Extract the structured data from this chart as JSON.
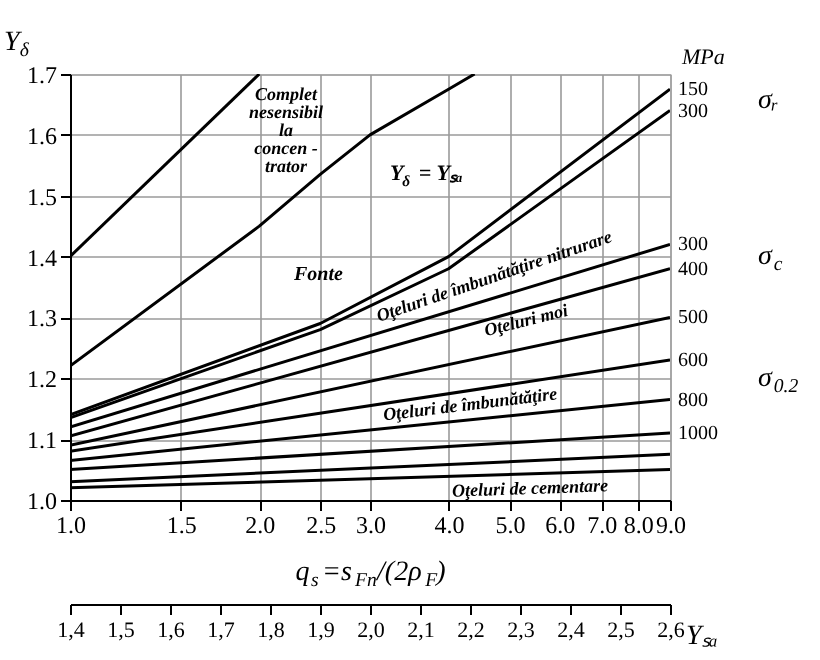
{
  "chart_data": {
    "type": "line",
    "xlabel": "q$_{s}$=s$_{Fn}$/(2ρ$_{F}$)",
    "ylabel": "Y$_{δ}$",
    "xlim": [
      1.0,
      9.0
    ],
    "xticks": [
      {
        "value": 1,
        "label": "1.0"
      },
      1.5,
      {
        "value": 2,
        "label": "2.0"
      },
      2.5,
      {
        "value": 3,
        "label": "3.0"
      },
      {
        "value": 4,
        "label": "4.0"
      },
      {
        "value": 5,
        "label": "5.0"
      },
      {
        "value": 6,
        "label": "6.0"
      },
      {
        "value": 7,
        "label": "7.0"
      },
      {
        "value": 8,
        "label": "8.0"
      },
      {
        "value": 9,
        "label": "9.0"
      }
    ],
    "ylim": [
      1.0,
      1.7
    ],
    "yticks": [
      {
        "value": 1,
        "label": "1.0"
      },
      1.1,
      1.2,
      1.3,
      1.4,
      1.5,
      1.6,
      1.7
    ],
    "x2label": "Yₛₐ",
    "x2lim": [
      1.4,
      2.6
    ],
    "x2ticks": [
      {
        "value": 1.4,
        "label": "1,4"
      },
      {
        "value": 1.5,
        "label": "1,5"
      },
      {
        "value": 1.6,
        "label": "1,6"
      },
      {
        "value": 1.7,
        "label": "1,7"
      },
      {
        "value": 1.8,
        "label": "1,8"
      },
      {
        "value": 1.9,
        "label": "1,9"
      },
      {
        "value": 2.0,
        "label": "2,0"
      },
      {
        "value": 2.1,
        "label": "2,1"
      },
      {
        "value": 2.2,
        "label": "2,2"
      },
      {
        "value": 2.3,
        "label": "2,3"
      },
      {
        "value": 2.4,
        "label": "2,4"
      },
      {
        "value": 2.5,
        "label": "2,5"
      },
      {
        "value": 2.6,
        "label": "2,6"
      }
    ],
    "grid": true,
    "line_style": "solid",
    "log": "x",
    "legend": false,
    "series": [
      {
        "color": "#000000",
        "x": [
          1.0,
          2.0
        ],
        "values": [
          1.4,
          1.7
        ]
      },
      {
        "color": "#000000",
        "x": [
          1.0,
          2.0,
          2.5,
          3.0,
          4.0,
          4.4
        ],
        "values": [
          1.22,
          1.45,
          1.535,
          1.6,
          1.675,
          1.7
        ]
      },
      {
        "name": "150",
        "color": "#000000",
        "x": [
          1.0,
          2.5,
          4.0,
          9.0
        ],
        "values": [
          1.14,
          1.29,
          1.4,
          1.675
        ]
      },
      {
        "name": "300",
        "color": "#000000",
        "x": [
          1.0,
          2.5,
          4.0,
          9.0
        ],
        "values": [
          1.135,
          1.28,
          1.38,
          1.64
        ]
      },
      {
        "name": "300",
        "color": "#000000",
        "x": [
          1.0,
          9.0
        ],
        "values": [
          1.12,
          1.42
        ]
      },
      {
        "name": "400",
        "color": "#000000",
        "x": [
          1.0,
          9.0
        ],
        "values": [
          1.105,
          1.38
        ]
      },
      {
        "name": "500",
        "color": "#000000",
        "x": [
          1.0,
          9.0
        ],
        "values": [
          1.09,
          1.3
        ]
      },
      {
        "name": "600",
        "color": "#000000",
        "x": [
          1.0,
          9.0
        ],
        "values": [
          1.08,
          1.23
        ]
      },
      {
        "name": "800",
        "color": "#000000",
        "x": [
          1.0,
          9.0
        ],
        "values": [
          1.065,
          1.165
        ]
      },
      {
        "name": "1000",
        "color": "#000000",
        "x": [
          1.0,
          9.0
        ],
        "values": [
          1.05,
          1.11
        ]
      },
      {
        "color": "#000000",
        "x": [
          1.0,
          9.0
        ],
        "values": [
          1.03,
          1.075
        ]
      },
      {
        "color": "#000000",
        "x": [
          1.0,
          9.0
        ],
        "values": [
          1.02,
          1.05
        ]
      }
    ],
    "annotations": [
      "Complet\nnesensibil\nla\nconcen -\ntrator",
      "Y$_{δ}$ = Yₛₐ",
      "Fonte",
      "Oţeluri de îmbunătăţire nitrurare",
      "Oţeluri moi",
      "Oţeluri de îmbunătăţire",
      "Oţeluri de cementare",
      "MPa",
      "σᵣ",
      "σ$_{c}$",
      "σ$_{0.2}$"
    ]
  }
}
